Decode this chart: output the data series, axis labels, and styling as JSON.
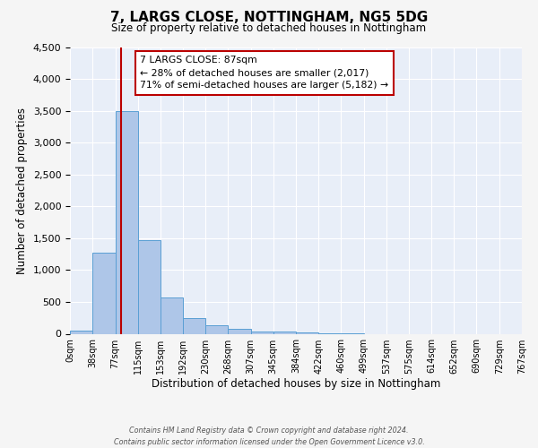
{
  "title": "7, LARGS CLOSE, NOTTINGHAM, NG5 5DG",
  "subtitle": "Size of property relative to detached houses in Nottingham",
  "xlabel": "Distribution of detached houses by size in Nottingham",
  "ylabel": "Number of detached properties",
  "bar_color": "#aec6e8",
  "bar_edge_color": "#5a9fd4",
  "background_color": "#e8eef8",
  "fig_background_color": "#f5f5f5",
  "grid_color": "#ffffff",
  "vline_value": 87,
  "vline_color": "#bb0000",
  "bin_edges": [
    0,
    38,
    77,
    115,
    153,
    192,
    230,
    268,
    307,
    345,
    384,
    422,
    460,
    499,
    537,
    575,
    614,
    652,
    690,
    729,
    767
  ],
  "bar_heights": [
    50,
    1270,
    3500,
    1470,
    575,
    245,
    140,
    80,
    40,
    30,
    20,
    10,
    5,
    0,
    0,
    0,
    0,
    0,
    0,
    0
  ],
  "ylim": [
    0,
    4500
  ],
  "yticks": [
    0,
    500,
    1000,
    1500,
    2000,
    2500,
    3000,
    3500,
    4000,
    4500
  ],
  "annotation_line1": "7 LARGS CLOSE: 87sqm",
  "annotation_line2": "← 28% of detached houses are smaller (2,017)",
  "annotation_line3": "71% of semi-detached houses are larger (5,182) →",
  "footer_line1": "Contains HM Land Registry data © Crown copyright and database right 2024.",
  "footer_line2": "Contains public sector information licensed under the Open Government Licence v3.0."
}
